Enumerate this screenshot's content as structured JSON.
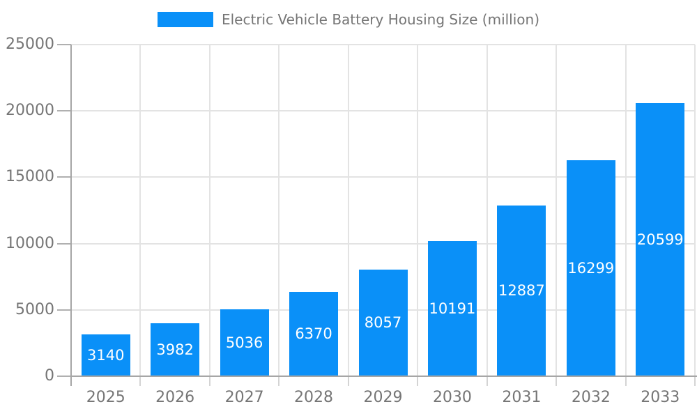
{
  "chart_data": {
    "type": "bar",
    "title": "Electric Vehicle Battery Housing Size (million)",
    "categories": [
      "2025",
      "2026",
      "2027",
      "2028",
      "2029",
      "2030",
      "2031",
      "2032",
      "2033"
    ],
    "values": [
      3140,
      3982,
      5036,
      6370,
      8057,
      10191,
      12887,
      16299,
      20599
    ],
    "xlabel": "",
    "ylabel": "",
    "ylim": [
      0,
      25000
    ],
    "yticks": [
      0,
      5000,
      10000,
      15000,
      20000,
      25000
    ],
    "grid": true,
    "legend_position": "top-center",
    "bar_color": "#0a90f8",
    "bar_label_color": "#ffffff",
    "axis_text_color": "#757575",
    "gridline_color": "#e3e3e3",
    "axis_line_color": "#a6a6a6"
  }
}
